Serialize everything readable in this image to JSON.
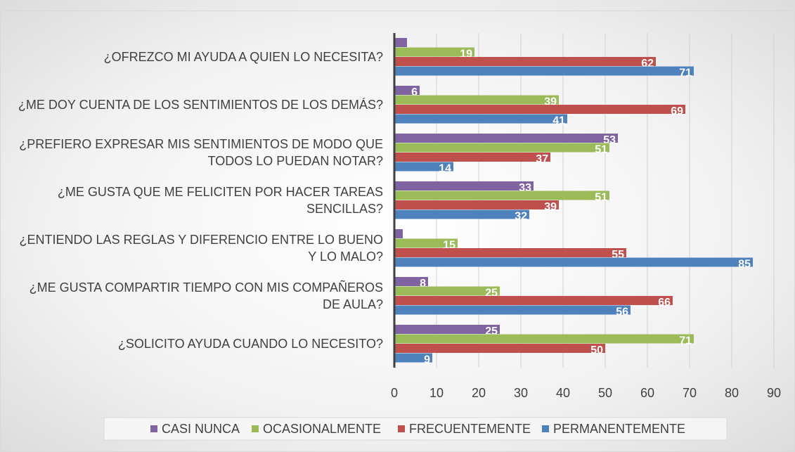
{
  "chart_data": {
    "type": "barh",
    "categories": [
      "¿OFREZCO MI AYUDA A QUIEN LO NECESITA?",
      "¿ME DOY CUENTA DE LOS SENTIMIENTOS DE LOS DEMÁS?",
      "¿PREFIERO EXPRESAR MIS SENTIMIENTOS DE MODO QUE TODOS LO PUEDAN NOTAR?",
      "¿ME GUSTA QUE ME FELICITEN POR HACER TAREAS SENCILLAS?",
      "¿ENTIENDO LAS REGLAS Y DIFERENCIO ENTRE LO BUENO Y LO MALO?",
      "¿ME GUSTA COMPARTIR TIEMPO CON MIS COMPAÑEROS DE AULA?",
      "¿SOLICITO AYUDA CUANDO LO NECESITO?"
    ],
    "series": [
      {
        "name": "CASI NUNCA",
        "color": "#8064a2",
        "values": [
          3,
          6,
          53,
          33,
          2,
          8,
          25
        ],
        "value_labels": [
          null,
          "6",
          "53",
          "33",
          null,
          "8",
          "25"
        ]
      },
      {
        "name": "OCASIONALMENTE",
        "color": "#9bbb59",
        "values": [
          19,
          39,
          51,
          51,
          15,
          25,
          71
        ]
      },
      {
        "name": "FRECUENTEMENTE",
        "color": "#c0504d",
        "values": [
          62,
          69,
          37,
          39,
          55,
          66,
          50
        ]
      },
      {
        "name": "PERMANENTEMENTE",
        "color": "#4f81bd",
        "values": [
          71,
          41,
          14,
          32,
          85,
          56,
          9
        ]
      }
    ],
    "xlim": [
      0,
      90
    ],
    "xticks": [
      0,
      10,
      20,
      30,
      40,
      50,
      60,
      70,
      80,
      90
    ],
    "grid": true,
    "legend": "bottom"
  }
}
